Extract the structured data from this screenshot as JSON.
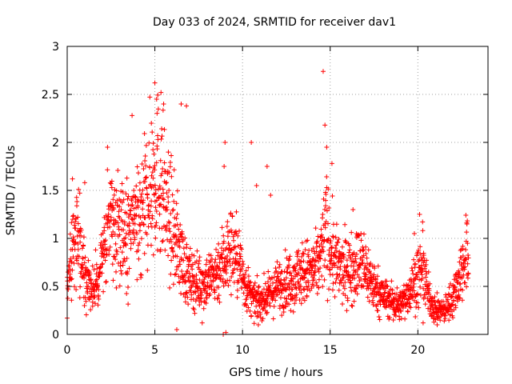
{
  "chart_data": {
    "type": "scatter",
    "title": "Day 033 of 2024, SRMTID for receiver dav1",
    "xlabel": "GPS time / hours",
    "ylabel": "SRMTID / TECUs",
    "xlim": [
      0,
      24
    ],
    "ylim": [
      0,
      3
    ],
    "xticks": [
      0,
      5,
      10,
      15,
      20
    ],
    "yticks": [
      0,
      0.5,
      1,
      1.5,
      2,
      2.5,
      3
    ],
    "xtick_labels": [
      "0",
      "5",
      "10",
      "15",
      "20"
    ],
    "ytick_labels": [
      "0",
      "0.5",
      "1",
      "1.5",
      "2",
      "2.5",
      "3"
    ],
    "grid": true,
    "marker": "+",
    "series": [
      {
        "name": "dav1",
        "color": "#ff0000",
        "trend": [
          [
            0.0,
            0.45
          ],
          [
            0.2,
            0.75
          ],
          [
            0.5,
            1.1
          ],
          [
            0.8,
            0.85
          ],
          [
            1.0,
            0.65
          ],
          [
            1.3,
            0.5
          ],
          [
            1.6,
            0.5
          ],
          [
            1.9,
            0.7
          ],
          [
            2.1,
            0.95
          ],
          [
            2.4,
            1.1
          ],
          [
            2.7,
            1.15
          ],
          [
            3.0,
            1.1
          ],
          [
            3.3,
            1.0
          ],
          [
            3.6,
            1.1
          ],
          [
            3.9,
            1.15
          ],
          [
            4.2,
            1.25
          ],
          [
            4.5,
            1.4
          ],
          [
            4.8,
            1.55
          ],
          [
            5.1,
            1.7
          ],
          [
            5.4,
            1.55
          ],
          [
            5.7,
            1.3
          ],
          [
            6.0,
            1.1
          ],
          [
            6.3,
            0.95
          ],
          [
            6.6,
            0.75
          ],
          [
            6.9,
            0.6
          ],
          [
            7.3,
            0.55
          ],
          [
            7.8,
            0.55
          ],
          [
            8.3,
            0.6
          ],
          [
            8.7,
            0.7
          ],
          [
            9.0,
            0.8
          ],
          [
            9.4,
            0.9
          ],
          [
            9.8,
            0.75
          ],
          [
            10.2,
            0.5
          ],
          [
            10.6,
            0.35
          ],
          [
            11.0,
            0.35
          ],
          [
            11.5,
            0.4
          ],
          [
            12.0,
            0.5
          ],
          [
            12.5,
            0.55
          ],
          [
            13.0,
            0.6
          ],
          [
            13.5,
            0.65
          ],
          [
            14.0,
            0.65
          ],
          [
            14.3,
            0.7
          ],
          [
            14.6,
            0.95
          ],
          [
            14.8,
            1.1
          ],
          [
            15.0,
            0.9
          ],
          [
            15.3,
            0.75
          ],
          [
            15.7,
            0.65
          ],
          [
            16.2,
            0.7
          ],
          [
            16.7,
            0.75
          ],
          [
            17.1,
            0.65
          ],
          [
            17.5,
            0.5
          ],
          [
            18.0,
            0.4
          ],
          [
            18.5,
            0.35
          ],
          [
            19.0,
            0.3
          ],
          [
            19.5,
            0.45
          ],
          [
            20.0,
            0.6
          ],
          [
            20.3,
            0.7
          ],
          [
            20.6,
            0.4
          ],
          [
            21.0,
            0.25
          ],
          [
            21.5,
            0.25
          ],
          [
            21.9,
            0.35
          ],
          [
            22.3,
            0.55
          ],
          [
            22.7,
            0.8
          ],
          [
            22.9,
            0.75
          ]
        ],
        "outliers": [
          [
            5.0,
            2.62
          ],
          [
            5.35,
            2.52
          ],
          [
            5.1,
            2.45
          ],
          [
            5.5,
            2.4
          ],
          [
            6.5,
            2.4
          ],
          [
            6.8,
            2.38
          ],
          [
            4.8,
            2.2
          ],
          [
            3.7,
            2.28
          ],
          [
            2.3,
            1.95
          ],
          [
            14.6,
            2.74
          ],
          [
            14.7,
            2.18
          ],
          [
            14.8,
            1.95
          ],
          [
            9.0,
            2.0
          ],
          [
            10.5,
            2.0
          ],
          [
            8.95,
            1.75
          ],
          [
            11.4,
            1.75
          ],
          [
            15.1,
            1.78
          ],
          [
            1.0,
            1.58
          ],
          [
            0.3,
            1.62
          ],
          [
            11.6,
            1.45
          ],
          [
            10.8,
            1.55
          ],
          [
            20.1,
            1.25
          ],
          [
            16.3,
            1.3
          ],
          [
            19.8,
            1.05
          ],
          [
            22.8,
            1.15
          ],
          [
            8.9,
            0.0
          ],
          [
            9.05,
            0.02
          ],
          [
            6.25,
            0.05
          ],
          [
            0.0,
            0.17
          ],
          [
            20.3,
            0.12
          ],
          [
            21.1,
            0.1
          ],
          [
            10.9,
            0.1
          ],
          [
            7.7,
            0.12
          ],
          [
            18.6,
            0.15
          ]
        ],
        "n_points": 2200,
        "gap_hours": [
          23.0,
          24.0
        ]
      }
    ]
  }
}
